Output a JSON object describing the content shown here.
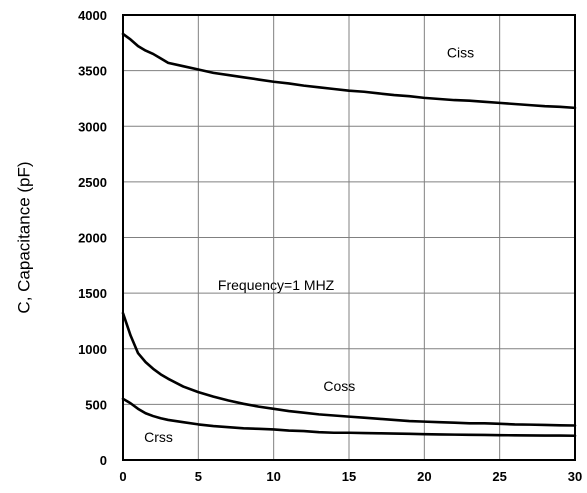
{
  "chart_data": {
    "type": "line",
    "title": "",
    "xlabel": "",
    "ylabel": "C, Capacitance (pF)",
    "xlim": [
      0,
      30
    ],
    "ylim": [
      0,
      4000
    ],
    "x_ticks": [
      0,
      5,
      10,
      15,
      20,
      25,
      30
    ],
    "y_ticks": [
      0,
      500,
      1000,
      1500,
      2000,
      2500,
      3000,
      3500,
      4000
    ],
    "x_tick_labels": [
      "0",
      "5",
      "10",
      "15",
      "20",
      "25",
      "30"
    ],
    "y_tick_labels": [
      "0",
      "500",
      "1000",
      "1500",
      "2000",
      "2500",
      "3000",
      "3500",
      "4000"
    ],
    "grid": true,
    "legend": "none",
    "series": [
      {
        "name": "Ciss",
        "color": "#000000",
        "x": [
          0,
          0.5,
          1,
          1.5,
          2,
          2.5,
          3,
          4,
          5,
          6,
          7,
          8,
          9,
          10,
          11,
          12,
          13,
          14,
          15,
          16,
          17,
          18,
          19,
          20,
          21,
          22,
          23,
          24,
          25,
          26,
          27,
          28,
          29,
          30
        ],
        "values": [
          3830,
          3780,
          3720,
          3680,
          3650,
          3610,
          3570,
          3540,
          3510,
          3480,
          3460,
          3440,
          3420,
          3400,
          3385,
          3365,
          3350,
          3335,
          3320,
          3310,
          3295,
          3280,
          3270,
          3255,
          3245,
          3235,
          3230,
          3220,
          3210,
          3200,
          3190,
          3180,
          3175,
          3165
        ]
      },
      {
        "name": "Coss",
        "color": "#000000",
        "x": [
          0,
          0.5,
          1,
          1.5,
          2,
          2.5,
          3,
          4,
          5,
          6,
          7,
          8,
          9,
          10,
          11,
          12,
          13,
          14,
          15,
          16,
          17,
          18,
          19,
          20,
          21,
          22,
          23,
          24,
          25,
          26,
          27,
          28,
          29,
          30
        ],
        "values": [
          1320,
          1120,
          960,
          880,
          820,
          770,
          730,
          660,
          610,
          570,
          535,
          505,
          480,
          460,
          440,
          425,
          410,
          400,
          390,
          380,
          370,
          360,
          350,
          345,
          340,
          335,
          330,
          330,
          325,
          320,
          318,
          315,
          312,
          310
        ]
      },
      {
        "name": "Crss",
        "color": "#000000",
        "x": [
          0,
          0.5,
          1,
          1.5,
          2,
          2.5,
          3,
          4,
          5,
          6,
          7,
          8,
          9,
          10,
          11,
          12,
          13,
          14,
          15,
          16,
          17,
          18,
          19,
          20,
          21,
          22,
          23,
          24,
          25,
          26,
          27,
          28,
          29,
          30
        ],
        "values": [
          550,
          510,
          460,
          420,
          395,
          375,
          360,
          340,
          320,
          305,
          295,
          285,
          280,
          275,
          265,
          260,
          250,
          245,
          245,
          242,
          240,
          238,
          235,
          232,
          230,
          228,
          226,
          225,
          223,
          222,
          221,
          220,
          220,
          218
        ]
      }
    ],
    "annotations": [
      {
        "text": "Ciss",
        "x": 21.5,
        "y": 3620
      },
      {
        "text": "Coss",
        "x": 13.3,
        "y": 620
      },
      {
        "text": "Crss",
        "x": 1.4,
        "y": 160
      },
      {
        "text": "Frequency=1 MHZ",
        "x": 6.3,
        "y": 1530
      }
    ]
  }
}
